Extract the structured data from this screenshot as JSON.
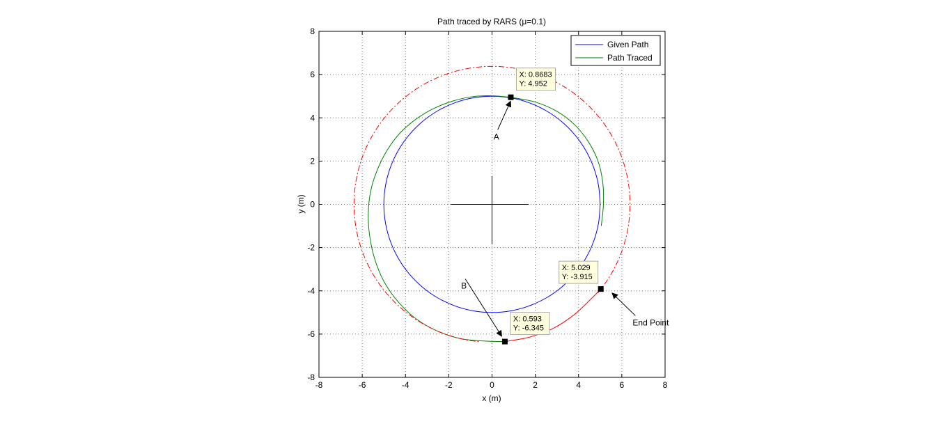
{
  "chart_data": {
    "type": "line",
    "title": "Path traced by RARS (μ=0.1)",
    "xlabel": "x (m)",
    "ylabel": "y (m)",
    "xlim": [
      -8,
      8
    ],
    "ylim": [
      -8,
      8
    ],
    "xticks": [
      "-8",
      "-6",
      "-4",
      "-2",
      "0",
      "2",
      "4",
      "6",
      "8"
    ],
    "yticks": [
      "-8",
      "-6",
      "-4",
      "-2",
      "0",
      "2",
      "4",
      "6",
      "8"
    ],
    "grid": true,
    "legend_position": "top-right",
    "legend": [
      "Given Path",
      "Path Traced"
    ],
    "series": [
      {
        "name": "Given Path",
        "color": "#0000ff",
        "style": "solid",
        "points": [
          [
            5,
            0
          ],
          [
            4.924,
            0.868
          ],
          [
            4.698,
            1.71
          ],
          [
            4.33,
            2.5
          ],
          [
            3.83,
            3.214
          ],
          [
            3.214,
            3.83
          ],
          [
            2.5,
            4.33
          ],
          [
            1.71,
            4.698
          ],
          [
            0.868,
            4.924
          ],
          [
            0,
            5
          ],
          [
            -0.868,
            4.924
          ],
          [
            -1.71,
            4.698
          ],
          [
            -2.5,
            4.33
          ],
          [
            -3.214,
            3.83
          ],
          [
            -3.83,
            3.214
          ],
          [
            -4.33,
            2.5
          ],
          [
            -4.698,
            1.71
          ],
          [
            -4.924,
            0.868
          ],
          [
            -5,
            0
          ],
          [
            -4.924,
            -0.868
          ],
          [
            -4.698,
            -1.71
          ],
          [
            -4.33,
            -2.5
          ],
          [
            -3.83,
            -3.214
          ],
          [
            -3.214,
            -3.83
          ],
          [
            -2.5,
            -4.33
          ],
          [
            -1.71,
            -4.698
          ],
          [
            -0.868,
            -4.924
          ],
          [
            0,
            -5
          ],
          [
            0.868,
            -4.924
          ],
          [
            1.71,
            -4.698
          ],
          [
            2.5,
            -4.33
          ],
          [
            3.214,
            -3.83
          ],
          [
            3.83,
            -3.214
          ],
          [
            4.33,
            -2.5
          ],
          [
            4.698,
            -1.71
          ],
          [
            4.924,
            -0.868
          ],
          [
            5,
            0
          ]
        ]
      },
      {
        "name": "Path Traced",
        "color": "#008000",
        "style": "solid",
        "points": [
          [
            0.868,
            4.952
          ],
          [
            0,
            5.02
          ],
          [
            -0.9,
            4.98
          ],
          [
            -1.8,
            4.78
          ],
          [
            -2.7,
            4.43
          ],
          [
            -3.5,
            3.95
          ],
          [
            -4.25,
            3.3
          ],
          [
            -4.85,
            2.5
          ],
          [
            -5.3,
            1.6
          ],
          [
            -5.6,
            0.65
          ],
          [
            -5.72,
            -0.4
          ],
          [
            -5.65,
            -1.5
          ],
          [
            -5.4,
            -2.6
          ],
          [
            -4.95,
            -3.65
          ],
          [
            -4.3,
            -4.55
          ],
          [
            -3.5,
            -5.3
          ],
          [
            -2.55,
            -5.85
          ],
          [
            -1.5,
            -6.2
          ],
          [
            -0.4,
            -6.32
          ],
          [
            0.593,
            -6.345
          ]
        ]
      },
      {
        "name": "",
        "color": "#008000",
        "style": "solid",
        "points": [
          [
            0.868,
            4.952
          ],
          [
            2.0,
            4.73
          ],
          [
            3.0,
            4.3
          ],
          [
            3.8,
            3.7
          ],
          [
            4.45,
            2.9
          ],
          [
            4.9,
            2.0
          ],
          [
            5.12,
            1.0
          ],
          [
            5.15,
            0
          ],
          [
            5.05,
            -1.0
          ]
        ]
      },
      {
        "name": "",
        "color": "#ff0000",
        "style": "dashdot",
        "circle": {
          "cx": 0,
          "cy": 0,
          "r": 6.38
        },
        "arc_deg": [
          -40,
          265
        ]
      },
      {
        "name": "",
        "color": "#ff0000",
        "style": "solid",
        "points": [
          [
            0.593,
            -6.345
          ],
          [
            1.7,
            -6.15
          ],
          [
            2.8,
            -5.75
          ],
          [
            3.8,
            -5.1
          ],
          [
            4.6,
            -4.35
          ],
          [
            5.029,
            -3.915
          ]
        ]
      },
      {
        "name": "",
        "color": "#000000",
        "style": "solid",
        "segments": [
          [
            [
              -1.9,
              0
            ],
            [
              1.7,
              0
            ]
          ],
          [
            [
              0,
              -1.85
            ],
            [
              0,
              1.3
            ]
          ]
        ]
      }
    ],
    "datatips": [
      {
        "x": 0.8683,
        "y": 4.952,
        "line1": "X: 0.8683",
        "line2": "Y: 4.952"
      },
      {
        "x": 5.029,
        "y": -3.915,
        "line1": "X: 5.029",
        "line2": "Y: -3.915"
      },
      {
        "x": 0.593,
        "y": -6.345,
        "line1": "X: 0.593",
        "line2": "Y: -6.345"
      }
    ],
    "annotations": [
      {
        "text": "A",
        "text_x": 0.2,
        "text_y": 3.0,
        "arrow_to": [
          0.86,
          4.77
        ]
      },
      {
        "text": "B",
        "text_x": -1.3,
        "text_y": -3.9,
        "arrow_to": [
          0.45,
          -6.1
        ]
      },
      {
        "text": "End Point",
        "text_x": 6.5,
        "text_y": -5.6,
        "arrow_to": [
          5.55,
          -4.1
        ]
      }
    ]
  }
}
